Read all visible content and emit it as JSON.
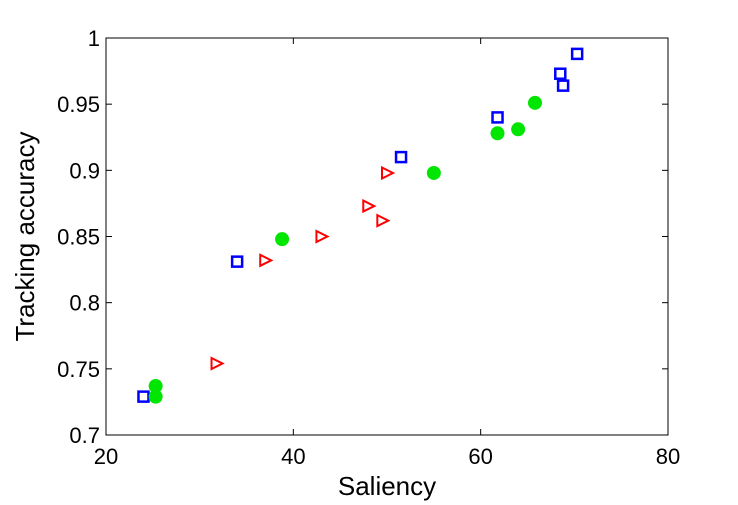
{
  "chart_data": {
    "type": "scatter",
    "title": "",
    "xlabel": "Saliency",
    "ylabel": "Tracking accuracy",
    "xlim": [
      20,
      80
    ],
    "ylim": [
      0.7,
      1.0
    ],
    "xticks": [
      20,
      40,
      60,
      80
    ],
    "yticks": [
      0.7,
      0.75,
      0.8,
      0.85,
      0.9,
      0.95,
      1.0
    ],
    "xtick_labels": [
      "20",
      "40",
      "60",
      "80"
    ],
    "ytick_labels": [
      "0.7",
      "0.75",
      "0.8",
      "0.85",
      "0.9",
      "0.95",
      "1"
    ],
    "grid": false,
    "legend": false,
    "series": [
      {
        "marker": "square-open",
        "color": "#0000ff",
        "points": [
          [
            24.0,
            0.729
          ],
          [
            34.0,
            0.831
          ],
          [
            51.5,
            0.91
          ],
          [
            61.8,
            0.94
          ],
          [
            68.5,
            0.973
          ],
          [
            68.8,
            0.964
          ],
          [
            70.3,
            0.988
          ]
        ]
      },
      {
        "marker": "triangle-right-open",
        "color": "#ff0000",
        "points": [
          [
            31.8,
            0.754
          ],
          [
            37.0,
            0.832
          ],
          [
            43.0,
            0.85
          ],
          [
            48.0,
            0.873
          ],
          [
            49.5,
            0.862
          ],
          [
            50.0,
            0.898
          ]
        ]
      },
      {
        "marker": "circle-filled",
        "color": "#00e600",
        "points": [
          [
            25.3,
            0.729
          ],
          [
            25.3,
            0.737
          ],
          [
            38.8,
            0.848
          ],
          [
            55.0,
            0.898
          ],
          [
            61.8,
            0.928
          ],
          [
            64.0,
            0.931
          ],
          [
            65.8,
            0.951
          ]
        ]
      }
    ]
  }
}
